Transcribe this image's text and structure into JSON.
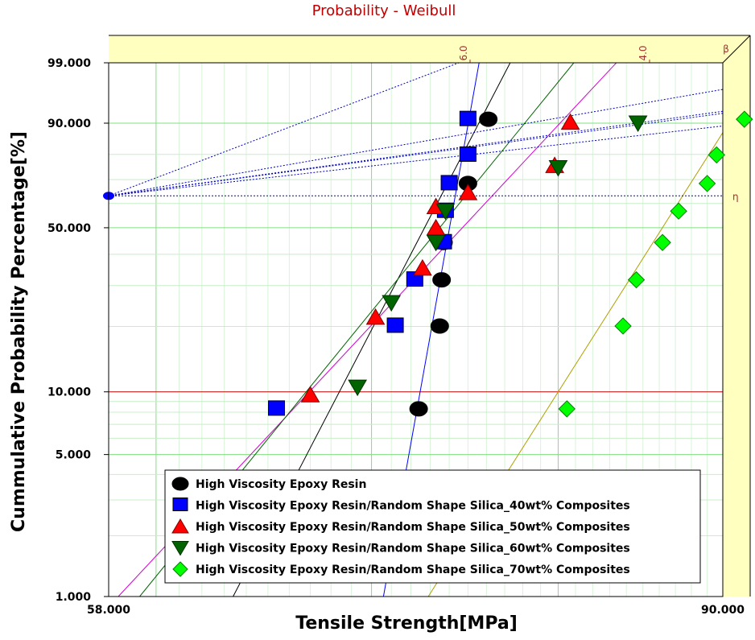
{
  "chart_data": {
    "type": "scatter",
    "title": "Probability - Weibull",
    "xlabel": "Tensile Strength[MPa]",
    "ylabel": "Cummulative Probability Percentage[%]",
    "x_scale": "log",
    "y_scale": "weibull",
    "xlim": [
      58.0,
      90.0
    ],
    "ylim": [
      1.0,
      99.0
    ],
    "x_tick_labels": [
      "58.000",
      "90.000"
    ],
    "y_ticks": [
      {
        "value": 99,
        "label": "99.000"
      },
      {
        "value": 90,
        "label": "90.000"
      },
      {
        "value": 50,
        "label": "50.000"
      },
      {
        "value": 10,
        "label": "10.000"
      },
      {
        "value": 5,
        "label": "5.000"
      },
      {
        "value": 1,
        "label": "1.000"
      }
    ],
    "beta_scale_labels": [
      "6.0",
      "4.0",
      "β"
    ],
    "eta_label": "η",
    "eta_percent": 63.2,
    "grid": true,
    "legend_position": "bottom-center",
    "series": [
      {
        "name": "High Viscosity Epoxy Resin",
        "marker": "circle",
        "color": "#000000",
        "line_color": "#000000",
        "points": [
          [
            72.4,
            8.3
          ],
          [
            73.5,
            20.1
          ],
          [
            73.6,
            31.7
          ],
          [
            73.7,
            44.3
          ],
          [
            75.0,
            68.4
          ],
          [
            76.1,
            91.0
          ]
        ],
        "fit": [
          [
            63.4,
            1.0
          ],
          [
            77.3,
            99.0
          ]
        ]
      },
      {
        "name": "High Viscosity Epoxy Resin/Random Shape Silica_40wt% Composites",
        "marker": "square",
        "color": "#0000ff",
        "line_color": "#0000ff",
        "points": [
          [
            65.4,
            8.3
          ],
          [
            71.2,
            20.1
          ],
          [
            72.2,
            31.7
          ],
          [
            73.7,
            44.3
          ],
          [
            73.8,
            56.8
          ],
          [
            74.0,
            68.4
          ],
          [
            75.0,
            79.8
          ],
          [
            75.0,
            91.0
          ]
        ],
        "fit": [
          [
            70.6,
            1.0
          ],
          [
            75.6,
            99.0
          ]
        ]
      },
      {
        "name": "High Viscosity Epoxy Resin/Random Shape Silica_50wt% Composites",
        "marker": "triangle-up",
        "color": "#ff0000",
        "line_color": "#d000d0",
        "points": [
          [
            67.0,
            9.7
          ],
          [
            70.2,
            22.0
          ],
          [
            72.6,
            35.4
          ],
          [
            73.3,
            50.0
          ],
          [
            73.3,
            58.7
          ],
          [
            75.0,
            64.6
          ],
          [
            79.8,
            75.8
          ],
          [
            80.7,
            90.3
          ]
        ],
        "fit": [
          [
            58.4,
            1.0
          ],
          [
            83.4,
            99.0
          ]
        ]
      },
      {
        "name": "High Viscosity Epoxy Resin/Random Shape Silica_60wt% Composites",
        "marker": "triangle-down",
        "color": "#006400",
        "line_color": "#006400",
        "points": [
          [
            69.3,
            10.5
          ],
          [
            71.0,
            25.4
          ],
          [
            73.3,
            44.3
          ],
          [
            73.8,
            56.8
          ],
          [
            80.0,
            74.8
          ],
          [
            84.7,
            90.0
          ]
        ],
        "fit": [
          [
            59.3,
            1.0
          ],
          [
            80.9,
            99.0
          ]
        ]
      },
      {
        "name": "High Viscosity Epoxy Resin/Random Shape Silica_70wt% Composites",
        "marker": "diamond",
        "color": "#00ff00",
        "line_color": "#b0a000",
        "points": [
          [
            80.5,
            8.3
          ],
          [
            83.8,
            20.1
          ],
          [
            84.6,
            31.7
          ],
          [
            86.2,
            44.3
          ],
          [
            87.2,
            56.8
          ],
          [
            89.0,
            68.4
          ],
          [
            89.6,
            79.8
          ],
          [
            91.4,
            91.0
          ]
        ],
        "fit": [
          [
            72.9,
            1.0
          ],
          [
            92.9,
            99.0
          ]
        ]
      }
    ]
  }
}
